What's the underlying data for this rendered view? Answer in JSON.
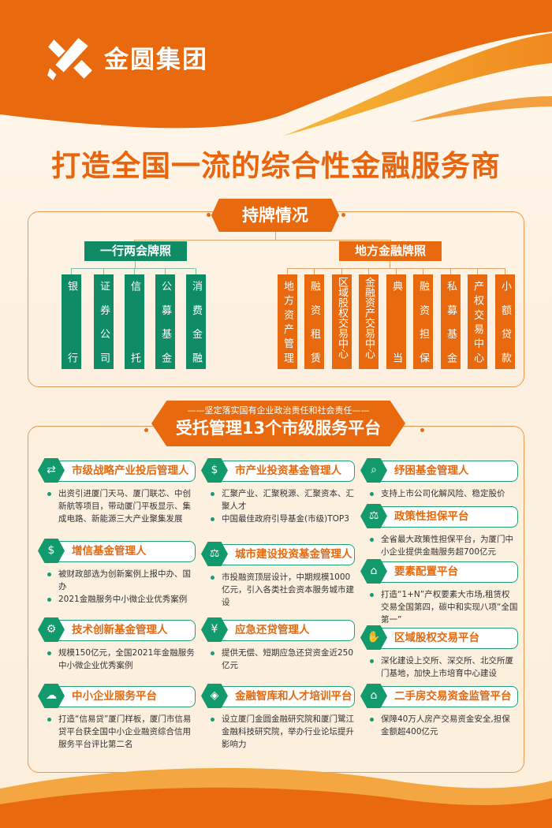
{
  "brand": {
    "name": "金圆集团",
    "primary": "#e8690e",
    "green": "#0f8c66"
  },
  "title": "打造全国一流的综合性金融服务商",
  "licenses": {
    "tag": "持牌情况",
    "group1": {
      "title": "一行两会牌照",
      "items": [
        "银行",
        "证券公司",
        "信托",
        "公募基金",
        "消费金融"
      ]
    },
    "group2": {
      "title": "地方金融牌照",
      "items": [
        "地方资产管理",
        "融资租赁",
        "区域股权交易中心",
        "金融资产交易中心",
        "典当",
        "融资担保",
        "私募基金",
        "产权交易中心",
        "小额贷款"
      ]
    }
  },
  "platforms": {
    "subtitle": "——坚定落实国有企业政治责任和社会责任——",
    "title": "受托管理13个市级服务平台",
    "cards": [
      {
        "icon": "money-exchange-icon",
        "title": "市级战略产业投后管理人",
        "bullets": [
          "出资引进厦门天马、厦门联芯、中创新航等项目，带动厦门平板显示、集成电路、新能源三大产业聚集发展"
        ]
      },
      {
        "icon": "coins-icon",
        "title": "市产业投资基金管理人",
        "bullets": [
          "汇聚产业、汇聚税源、汇聚资本、汇聚人才",
          "中国最佳政府引导基金(市级)TOP3"
        ]
      },
      {
        "icon": "search-money-icon",
        "title": "纾困基金管理人",
        "bullets": [
          "支持上市公司化解风险、稳定股价"
        ]
      },
      {
        "icon": "gavel-icon",
        "title": "政策性担保平台",
        "bullets": [
          "全省最大政策性担保平台，为厦门中小企业提供金融服务超700亿元"
        ]
      },
      {
        "icon": "phone-growth-icon",
        "title": "增信基金管理人",
        "bullets": [
          "被财政部选为创新案例上报中办、国办",
          "2021金融服务中小微企业优秀案例"
        ]
      },
      {
        "icon": "gavel-icon",
        "title": "城市建设投资基金管理人",
        "bullets": [
          "市投融资顶层设计，中期规模1000亿元，引入各类社会资本服务城市建设"
        ]
      },
      {
        "icon": "bank-icon",
        "title": "要素配置平台",
        "bullets": [
          "打造“1+N”产权要素大市场,租赁权交易全国第四，碳中和实现八项“全国第一”"
        ]
      },
      {
        "icon": "gear-dollar-icon",
        "title": "技术创新基金管理人",
        "bullets": [
          "规模150亿元，全国2021年金融服务中小微企业优秀案例"
        ]
      },
      {
        "icon": "yen-hand-icon",
        "title": "应急还贷管理人",
        "bullets": [
          "提供无偿、短期应急还贷资金近250亿元"
        ]
      },
      {
        "icon": "handshake-icon",
        "title": "区域股权交易平台",
        "bullets": [
          "深化建设上交所、深交所、北交所厦门基地，加快上市培育中心建设"
        ]
      },
      {
        "icon": "cloud-gear-icon",
        "title": "中小企业服务平台",
        "bullets": [
          "打造“信易贷”厦门样板，厦门市信易贷平台获全国中小企业融资综合信用服务平台评比第二名"
        ]
      },
      {
        "icon": "cube-icon",
        "title": "金融智库和人才培训平台",
        "bullets": [
          "设立厦门金圆金融研究院和厦门鹭江金融科技研究院，举办行业论坛提升影响力"
        ]
      },
      {
        "icon": "house-icon",
        "title": "二手房交易资金监管平台",
        "bullets": [
          "保障40万人房产交易资金安全,担保金额超400亿元"
        ]
      }
    ]
  }
}
